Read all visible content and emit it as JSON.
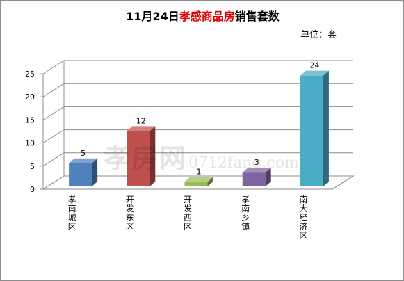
{
  "title": {
    "prefix": "11月24日",
    "highlight": "孝感商品房",
    "suffix": "销售套数"
  },
  "unit_label": "单位：套",
  "watermark": {
    "brand": "孝房网",
    "url": "0712fang.com"
  },
  "chart_data": {
    "type": "bar",
    "title": "11月24日孝感商品房销售套数",
    "xlabel": "",
    "ylabel": "",
    "ylim": [
      0,
      25
    ],
    "yticks": [
      0,
      5,
      10,
      15,
      20,
      25
    ],
    "grid": true,
    "legend": "none",
    "categories": [
      "孝南城区",
      "开发东区",
      "开发西区",
      "孝南乡镇",
      "南大经济区"
    ],
    "values": [
      5,
      12,
      1,
      3,
      24
    ],
    "colors": [
      "#4f81bd",
      "#c0504d",
      "#9bbb59",
      "#8064a2",
      "#4bacc6"
    ]
  }
}
